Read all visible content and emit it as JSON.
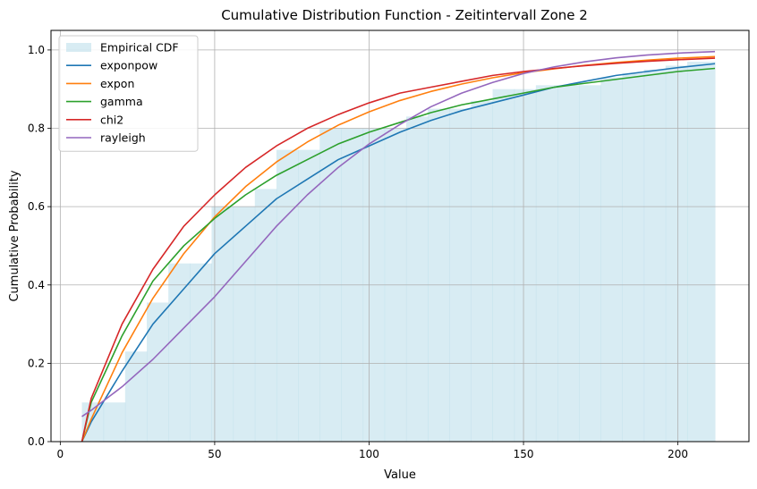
{
  "chart_data": {
    "type": "line",
    "title": "Cumulative Distribution Function - Zeitintervall Zone 2",
    "xlabel": "Value",
    "ylabel": "Cumulative Probability",
    "xlim": [
      -3,
      223
    ],
    "ylim": [
      0,
      1.05
    ],
    "xticks": [
      0,
      50,
      100,
      150,
      200
    ],
    "yticks": [
      0.0,
      0.2,
      0.4,
      0.6,
      0.8,
      1.0
    ],
    "grid": true,
    "legend_position": "top-left",
    "histogram": {
      "name": "Empirical CDF",
      "color": "#add8e6",
      "bins": [
        {
          "x0": 7,
          "x1": 14,
          "value": 0.1
        },
        {
          "x0": 14,
          "x1": 21,
          "value": 0.1
        },
        {
          "x0": 21,
          "x1": 28,
          "value": 0.23
        },
        {
          "x0": 28,
          "x1": 35,
          "value": 0.355
        },
        {
          "x0": 35,
          "x1": 42,
          "value": 0.455
        },
        {
          "x0": 42,
          "x1": 49,
          "value": 0.455
        },
        {
          "x0": 49,
          "x1": 56,
          "value": 0.6
        },
        {
          "x0": 56,
          "x1": 63,
          "value": 0.6
        },
        {
          "x0": 63,
          "x1": 70,
          "value": 0.645
        },
        {
          "x0": 70,
          "x1": 77,
          "value": 0.745
        },
        {
          "x0": 77,
          "x1": 84,
          "value": 0.745
        },
        {
          "x0": 84,
          "x1": 91,
          "value": 0.8
        },
        {
          "x0": 91,
          "x1": 98,
          "value": 0.8
        },
        {
          "x0": 98,
          "x1": 105,
          "value": 0.8
        },
        {
          "x0": 105,
          "x1": 112,
          "value": 0.8
        },
        {
          "x0": 112,
          "x1": 119,
          "value": 0.83
        },
        {
          "x0": 119,
          "x1": 126,
          "value": 0.85
        },
        {
          "x0": 126,
          "x1": 133,
          "value": 0.85
        },
        {
          "x0": 133,
          "x1": 140,
          "value": 0.87
        },
        {
          "x0": 140,
          "x1": 147,
          "value": 0.9
        },
        {
          "x0": 147,
          "x1": 154,
          "value": 0.9
        },
        {
          "x0": 154,
          "x1": 161,
          "value": 0.91
        },
        {
          "x0": 161,
          "x1": 168,
          "value": 0.91
        },
        {
          "x0": 168,
          "x1": 175,
          "value": 0.91
        },
        {
          "x0": 175,
          "x1": 182,
          "value": 0.93
        },
        {
          "x0": 182,
          "x1": 189,
          "value": 0.94
        },
        {
          "x0": 189,
          "x1": 196,
          "value": 0.95
        },
        {
          "x0": 196,
          "x1": 203,
          "value": 0.96
        },
        {
          "x0": 203,
          "x1": 212,
          "value": 0.97
        }
      ]
    },
    "series": [
      {
        "name": "exponpow",
        "color": "#1f77b4",
        "x": [
          7,
          10,
          20,
          30,
          40,
          50,
          60,
          70,
          80,
          90,
          100,
          110,
          120,
          130,
          140,
          150,
          160,
          170,
          180,
          190,
          200,
          212
        ],
        "y": [
          0.0,
          0.05,
          0.18,
          0.3,
          0.39,
          0.48,
          0.55,
          0.62,
          0.67,
          0.72,
          0.755,
          0.79,
          0.82,
          0.845,
          0.865,
          0.885,
          0.905,
          0.92,
          0.935,
          0.945,
          0.955,
          0.965
        ]
      },
      {
        "name": "expon",
        "color": "#ff7f0e",
        "x": [
          7,
          10,
          20,
          30,
          40,
          50,
          60,
          70,
          80,
          90,
          100,
          110,
          120,
          130,
          140,
          150,
          160,
          170,
          180,
          190,
          200,
          212
        ],
        "y": [
          0.0,
          0.057,
          0.227,
          0.366,
          0.48,
          0.574,
          0.651,
          0.714,
          0.765,
          0.808,
          0.842,
          0.871,
          0.894,
          0.913,
          0.929,
          0.942,
          0.952,
          0.961,
          0.968,
          0.974,
          0.979,
          0.983
        ]
      },
      {
        "name": "gamma",
        "color": "#2ca02c",
        "x": [
          7,
          10,
          20,
          30,
          40,
          50,
          60,
          70,
          80,
          90,
          100,
          110,
          120,
          130,
          140,
          150,
          160,
          170,
          180,
          190,
          200,
          212
        ],
        "y": [
          0.0,
          0.1,
          0.27,
          0.41,
          0.5,
          0.57,
          0.63,
          0.68,
          0.72,
          0.76,
          0.79,
          0.815,
          0.84,
          0.86,
          0.875,
          0.89,
          0.905,
          0.915,
          0.925,
          0.935,
          0.945,
          0.953
        ]
      },
      {
        "name": "chi2",
        "color": "#d62728",
        "x": [
          7,
          10,
          20,
          30,
          40,
          50,
          60,
          70,
          80,
          90,
          100,
          110,
          120,
          130,
          140,
          150,
          160,
          170,
          180,
          190,
          200,
          212
        ],
        "y": [
          0.0,
          0.11,
          0.3,
          0.44,
          0.55,
          0.63,
          0.7,
          0.755,
          0.8,
          0.835,
          0.865,
          0.89,
          0.905,
          0.92,
          0.935,
          0.945,
          0.953,
          0.96,
          0.966,
          0.971,
          0.975,
          0.979
        ]
      },
      {
        "name": "rayleigh",
        "color": "#9467bd",
        "x": [
          7,
          10,
          20,
          30,
          40,
          50,
          60,
          70,
          80,
          90,
          100,
          110,
          120,
          130,
          140,
          150,
          160,
          170,
          180,
          190,
          200,
          212
        ],
        "y": [
          0.064,
          0.08,
          0.14,
          0.21,
          0.29,
          0.37,
          0.46,
          0.55,
          0.63,
          0.7,
          0.76,
          0.81,
          0.855,
          0.89,
          0.917,
          0.94,
          0.957,
          0.97,
          0.98,
          0.987,
          0.992,
          0.996
        ]
      }
    ]
  }
}
